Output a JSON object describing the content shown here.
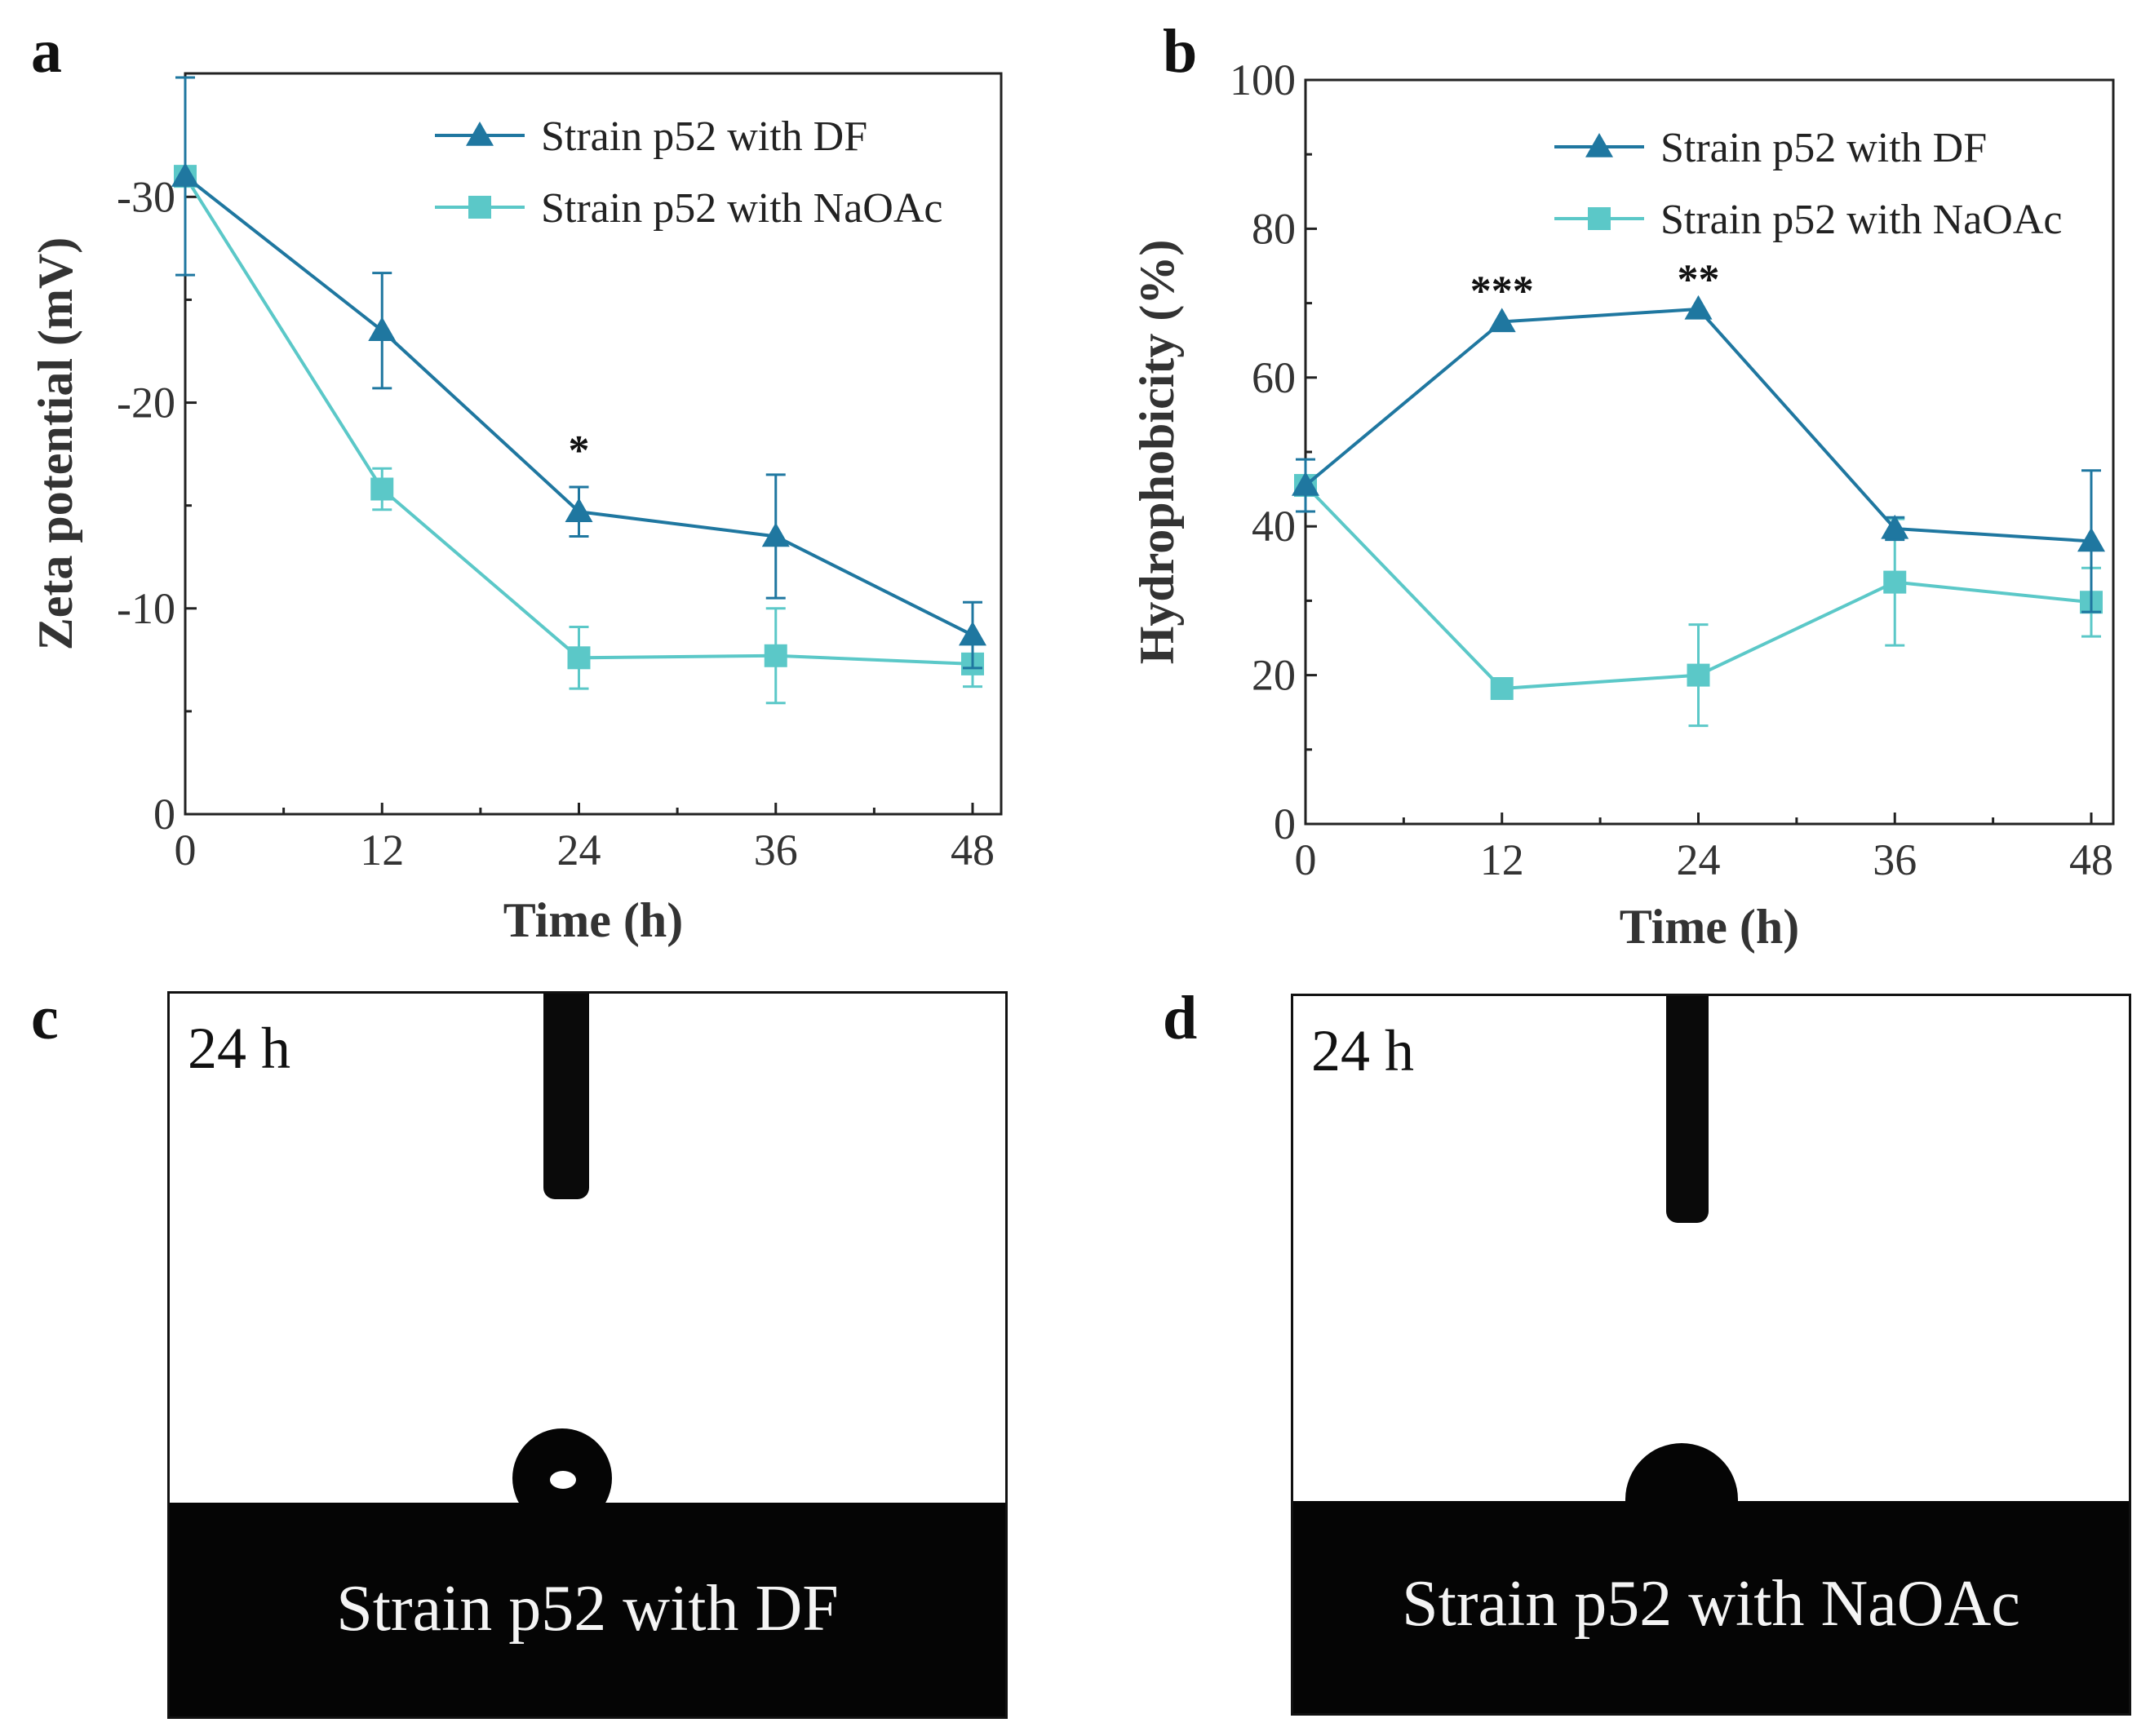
{
  "chart_data": [
    {
      "id": "a",
      "type": "line",
      "panel_label": "a",
      "xlabel": "Time (h)",
      "ylabel": "Zeta potential (mV)",
      "x": [
        0,
        12,
        24,
        36,
        48
      ],
      "xticks": [
        "0",
        "12",
        "24",
        "36",
        "48"
      ],
      "ylim": [
        0,
        -36
      ],
      "yticks": [
        0,
        -10,
        -20,
        -30
      ],
      "ytick_labels": [
        "0",
        "-10",
        "-20",
        "-30"
      ],
      "legend_position": "top-right",
      "series": [
        {
          "name": "Strain p52 with DF",
          "marker": "triangle",
          "color": "#1f77a0",
          "values": [
            -31,
            -23.5,
            -14.7,
            -13.5,
            -8.7
          ],
          "errors": [
            4.8,
            2.8,
            1.2,
            3.0,
            1.6
          ]
        },
        {
          "name": "Strain p52 with NaOAc",
          "marker": "square",
          "color": "#5bc8c8",
          "values": [
            -31,
            -15.8,
            -7.6,
            -7.7,
            -7.3
          ],
          "errors": [
            0,
            1.0,
            1.5,
            2.3,
            1.1
          ]
        }
      ],
      "annotations": [
        {
          "x": 24,
          "y": -17.8,
          "text": "*"
        }
      ]
    },
    {
      "id": "b",
      "type": "line",
      "panel_label": "b",
      "xlabel": "Time (h)",
      "ylabel": "Hydrophobicity (%)",
      "x": [
        0,
        12,
        24,
        36,
        48
      ],
      "xticks": [
        "0",
        "12",
        "24",
        "36",
        "48"
      ],
      "ylim": [
        0,
        100
      ],
      "yticks": [
        0,
        20,
        40,
        60,
        80,
        100
      ],
      "ytick_labels": [
        "0",
        "20",
        "40",
        "60",
        "80",
        "100"
      ],
      "legend_position": "top-right",
      "series": [
        {
          "name": "Strain p52 with DF",
          "marker": "triangle",
          "color": "#1f77a0",
          "values": [
            45.5,
            67.5,
            69.2,
            39.7,
            38
          ],
          "errors": [
            3.5,
            0,
            0,
            1.5,
            9.5
          ]
        },
        {
          "name": "Strain p52 with NaOAc",
          "marker": "square",
          "color": "#5bc8c8",
          "values": [
            45.5,
            18.2,
            20,
            32.5,
            29.8
          ],
          "errors": [
            0,
            0,
            6.8,
            8.5,
            4.6
          ]
        }
      ],
      "annotations": [
        {
          "x": 12,
          "y": 72,
          "text": "***"
        },
        {
          "x": 24,
          "y": 73.5,
          "text": "**"
        }
      ]
    }
  ],
  "photos": [
    {
      "panel_label": "c",
      "time_label": "24 h",
      "caption": "Strain p52 with DF"
    },
    {
      "panel_label": "d",
      "time_label": "24 h",
      "caption": "Strain p52 with NaOAc"
    }
  ]
}
